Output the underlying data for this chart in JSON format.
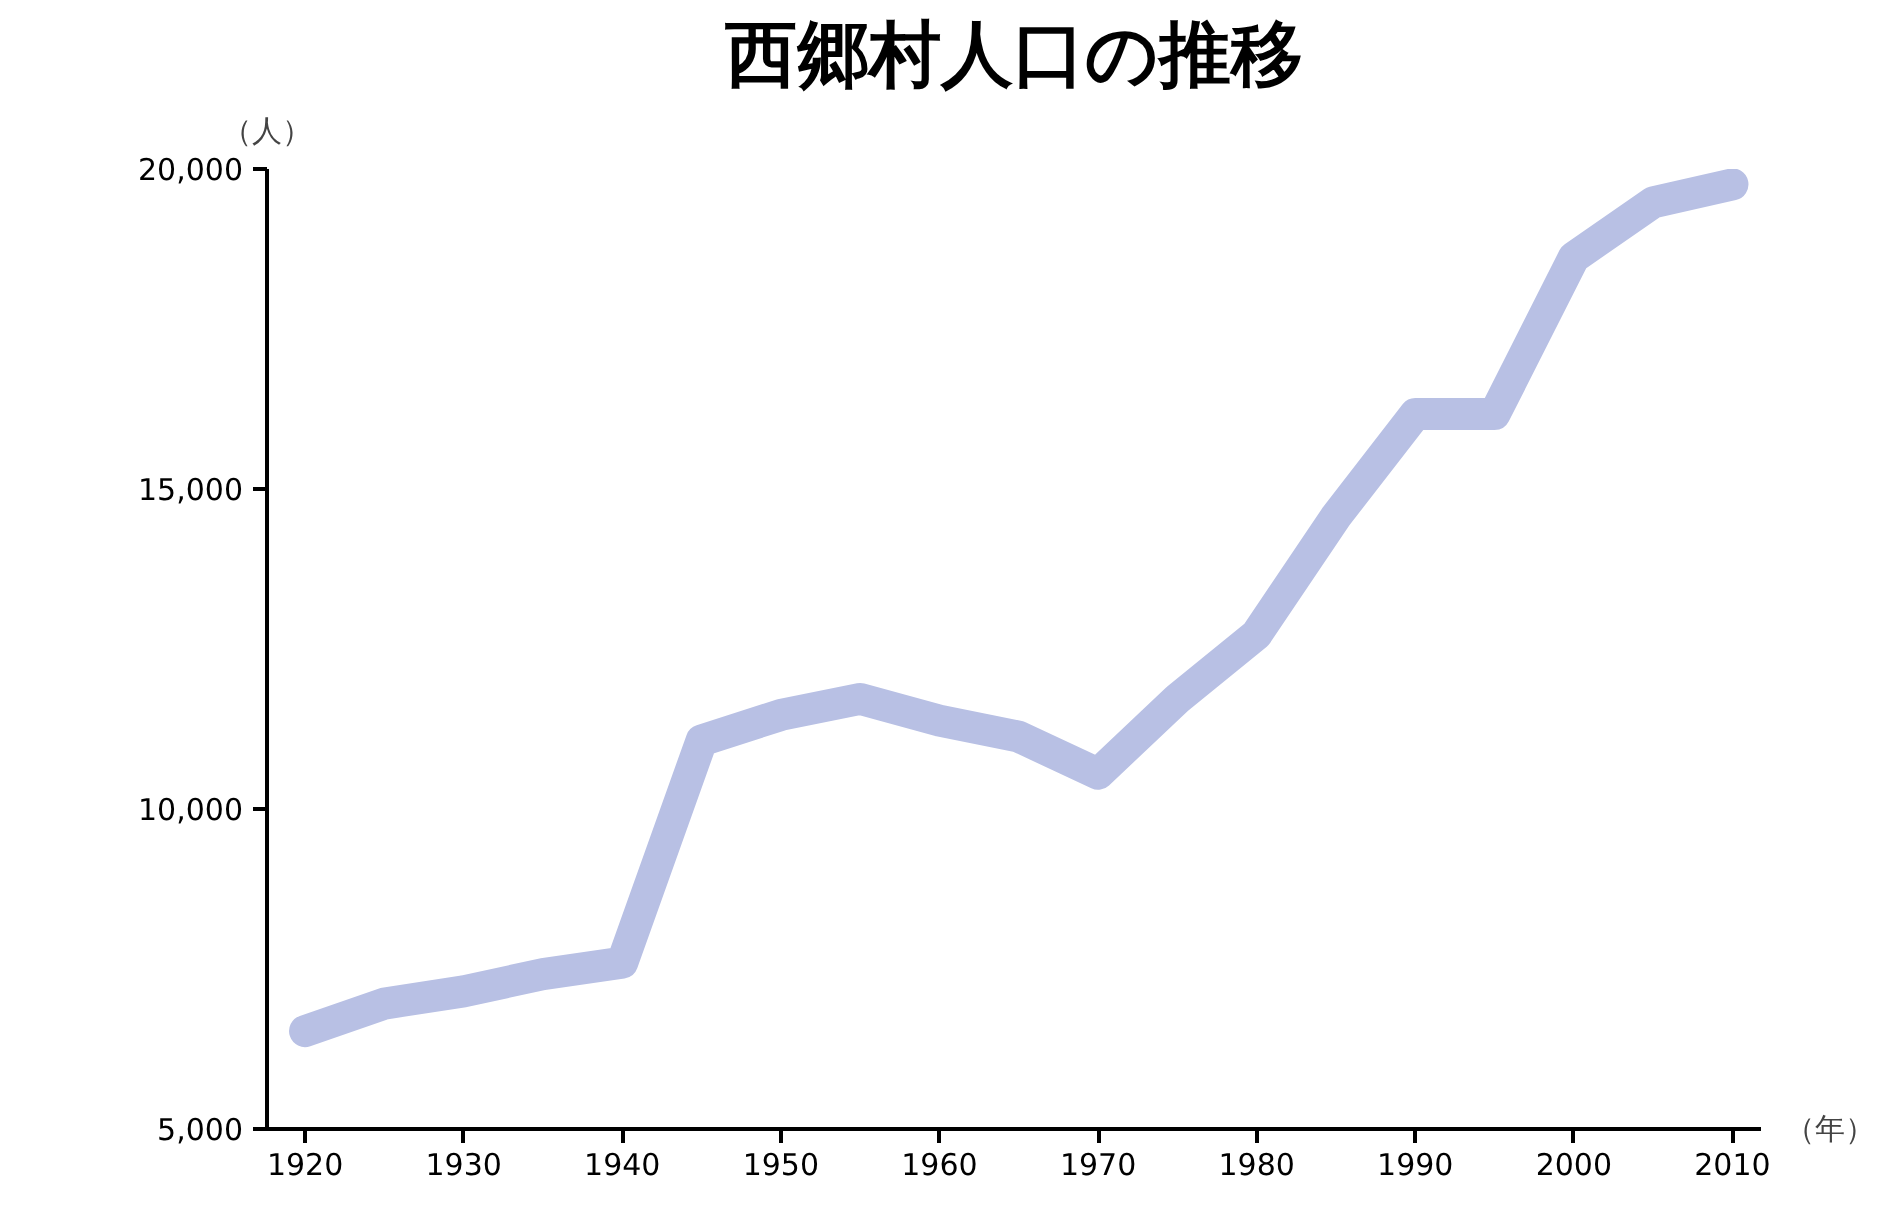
{
  "chart_data": {
    "type": "line",
    "title": "西郷村人口の推移",
    "xlabel": "（年）",
    "ylabel": "（人）",
    "x": [
      1920,
      1925,
      1930,
      1935,
      1940,
      1945,
      1950,
      1955,
      1960,
      1965,
      1970,
      1975,
      1980,
      1985,
      1990,
      1995,
      2000,
      2005,
      2010
    ],
    "series": [
      {
        "color": "#b8c0e4",
        "values": [
          6530,
          6960,
          7150,
          7420,
          7600,
          11070,
          11470,
          11720,
          11380,
          11130,
          10550,
          11720,
          12730,
          14570,
          16170,
          16170,
          18620,
          19480,
          19760
        ]
      }
    ],
    "xlim": [
      1917.6,
      2011.8
    ],
    "xticks": [
      1920,
      1930,
      1940,
      1950,
      1960,
      1970,
      1980,
      1990,
      2000,
      2010
    ],
    "ylim": [
      5000,
      20000
    ],
    "yticks": [
      {
        "value": 5000,
        "label": "5,000"
      },
      {
        "value": 10000,
        "label": "10,000"
      },
      {
        "value": 15000,
        "label": "15,000"
      },
      {
        "value": 20000,
        "label": "20,000"
      }
    ],
    "grid": false,
    "line_style": "solid"
  }
}
